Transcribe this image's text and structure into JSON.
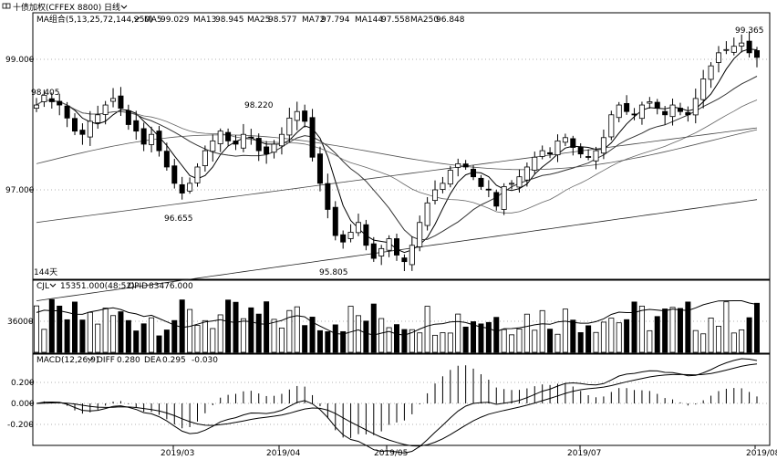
{
  "header": {
    "icon": "book-icon",
    "title": "十债加权(CFFEX 8800)",
    "period": "日线",
    "period_dropdown_icon": "chevron-down-icon"
  },
  "price_panel": {
    "ma_group_label": "MA组合(5,13,25,72,144,250)",
    "ma_values": [
      {
        "label": "MA5",
        "value": "99.029"
      },
      {
        "label": "MA13",
        "value": "98.945"
      },
      {
        "label": "MA25",
        "value": "98.577"
      },
      {
        "label": "MA72",
        "value": "97.794"
      },
      {
        "label": "MA144",
        "value": "97.558"
      },
      {
        "label": "MA250",
        "value": "96.848"
      }
    ],
    "y_ticks": [
      "99.000",
      "97.000"
    ],
    "annotations": [
      "98.405",
      "98.220",
      "96.655",
      "95.805",
      "99.365",
      "144天"
    ]
  },
  "volume_panel": {
    "label": "CJL",
    "value": "15351.000(48:52)",
    "opid_label": "OPID",
    "opid_value": "83476.000",
    "y_tick": "36000"
  },
  "macd_panel": {
    "label": "MACD(12,26,9)",
    "diff_label": "DIFF",
    "diff_value": "0.280",
    "dea_label": "DEA",
    "dea_value": "0.295",
    "macd_value": "-0.030",
    "y_ticks": [
      "0.200",
      "0.000",
      "-0.200"
    ]
  },
  "x_axis": {
    "labels": [
      "2019/03",
      "2019/04",
      "2019/05",
      "2019/07",
      "2019/08"
    ]
  },
  "colors": {
    "up": "#ffffff",
    "down": "#000000",
    "grid": "#c0c0c0",
    "ma_line": "#000000"
  },
  "chart_data": {
    "type": "candlestick",
    "title": "十债加权(CFFEX 8800)",
    "period": "日线",
    "price_range": [
      95.4,
      99.8
    ],
    "labeled_points": [
      {
        "label": "98.405",
        "value": 98.405
      },
      {
        "label": "98.220",
        "value": 98.22
      },
      {
        "label": "96.655",
        "value": 96.655
      },
      {
        "label": "95.805",
        "value": 95.805
      },
      {
        "label": "99.365",
        "value": 99.365
      }
    ],
    "close": [
      98.3,
      98.45,
      98.35,
      98.3,
      98.1,
      97.9,
      97.85,
      98.05,
      98.15,
      98.3,
      98.4,
      98.25,
      98.0,
      97.9,
      97.7,
      97.85,
      97.6,
      97.35,
      97.1,
      96.95,
      97.1,
      97.35,
      97.6,
      97.75,
      97.9,
      97.75,
      97.7,
      97.85,
      97.8,
      97.6,
      97.55,
      97.7,
      97.85,
      98.1,
      98.2,
      98.05,
      97.5,
      97.1,
      96.7,
      96.3,
      96.2,
      96.35,
      96.5,
      96.15,
      95.95,
      96.1,
      96.25,
      96.0,
      95.9,
      96.15,
      96.5,
      96.8,
      97.0,
      97.1,
      97.3,
      97.4,
      97.35,
      97.2,
      97.05,
      97.0,
      96.75,
      97.05,
      97.1,
      97.2,
      97.35,
      97.5,
      97.6,
      97.55,
      97.75,
      97.8,
      97.65,
      97.55,
      97.5,
      97.6,
      97.8,
      98.15,
      98.3,
      98.2,
      98.15,
      98.3,
      98.35,
      98.25,
      98.15,
      98.3,
      98.2,
      98.15,
      98.4,
      98.7,
      98.9,
      99.1,
      99.15,
      99.2,
      99.25,
      99.1,
      99.03
    ]
  }
}
